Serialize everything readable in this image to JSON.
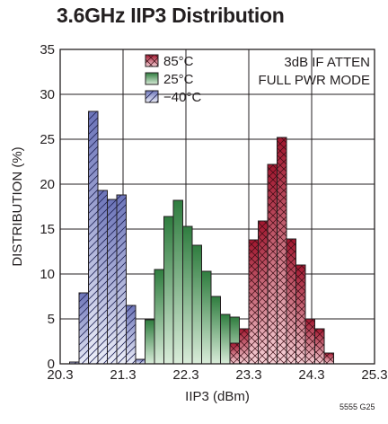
{
  "title": "3.6GHz IIP3 Distribution",
  "footnote": "5555 G25",
  "chart_data": {
    "type": "bar",
    "title": "3.6GHz IIP3 Distribution",
    "xlabel": "IIP3 (dBm)",
    "ylabel": "DISTRIBUTION (%)",
    "xlim": [
      20.3,
      25.3
    ],
    "ylim": [
      0,
      35
    ],
    "x_ticks": [
      "20.3",
      "21.3",
      "22.3",
      "23.3",
      "24.3",
      "25.3"
    ],
    "y_ticks": [
      "0",
      "5",
      "10",
      "15",
      "20",
      "25",
      "30",
      "35"
    ],
    "grid": true,
    "bin_width": 0.15,
    "legend_position": "top-center",
    "annotation": [
      "3dB IF ATTEN",
      "FULL PWR MODE"
    ],
    "series": [
      {
        "name": "−40°C",
        "color": "#7b83c4",
        "bins": [
          {
            "x": 20.45,
            "y": 0.2
          },
          {
            "x": 20.6,
            "y": 7.9
          },
          {
            "x": 20.75,
            "y": 28.1
          },
          {
            "x": 20.9,
            "y": 19.3
          },
          {
            "x": 21.05,
            "y": 18.3
          },
          {
            "x": 21.2,
            "y": 18.8
          },
          {
            "x": 21.35,
            "y": 6.5
          },
          {
            "x": 21.5,
            "y": 0.5
          }
        ]
      },
      {
        "name": "25°C",
        "color": "#3f8c4e",
        "bins": [
          {
            "x": 21.65,
            "y": 4.9
          },
          {
            "x": 21.8,
            "y": 10.5
          },
          {
            "x": 21.95,
            "y": 16.4
          },
          {
            "x": 22.1,
            "y": 18.2
          },
          {
            "x": 22.25,
            "y": 15.3
          },
          {
            "x": 22.4,
            "y": 13.2
          },
          {
            "x": 22.55,
            "y": 10.3
          },
          {
            "x": 22.7,
            "y": 7.5
          },
          {
            "x": 22.85,
            "y": 5.5
          },
          {
            "x": 23.0,
            "y": 5.2
          }
        ]
      },
      {
        "name": "85°C",
        "color": "#b3223a",
        "bins": [
          {
            "x": 23.0,
            "y": 2.3
          },
          {
            "x": 23.15,
            "y": 3.9
          },
          {
            "x": 23.3,
            "y": 13.8
          },
          {
            "x": 23.45,
            "y": 15.9
          },
          {
            "x": 23.6,
            "y": 22.2
          },
          {
            "x": 23.75,
            "y": 25.2
          },
          {
            "x": 23.9,
            "y": 13.9
          },
          {
            "x": 24.05,
            "y": 11.0
          },
          {
            "x": 24.2,
            "y": 5.0
          },
          {
            "x": 24.35,
            "y": 3.9
          },
          {
            "x": 24.5,
            "y": 1.2
          }
        ]
      }
    ],
    "legend_order": [
      "85°C",
      "25°C",
      "−40°C"
    ]
  }
}
